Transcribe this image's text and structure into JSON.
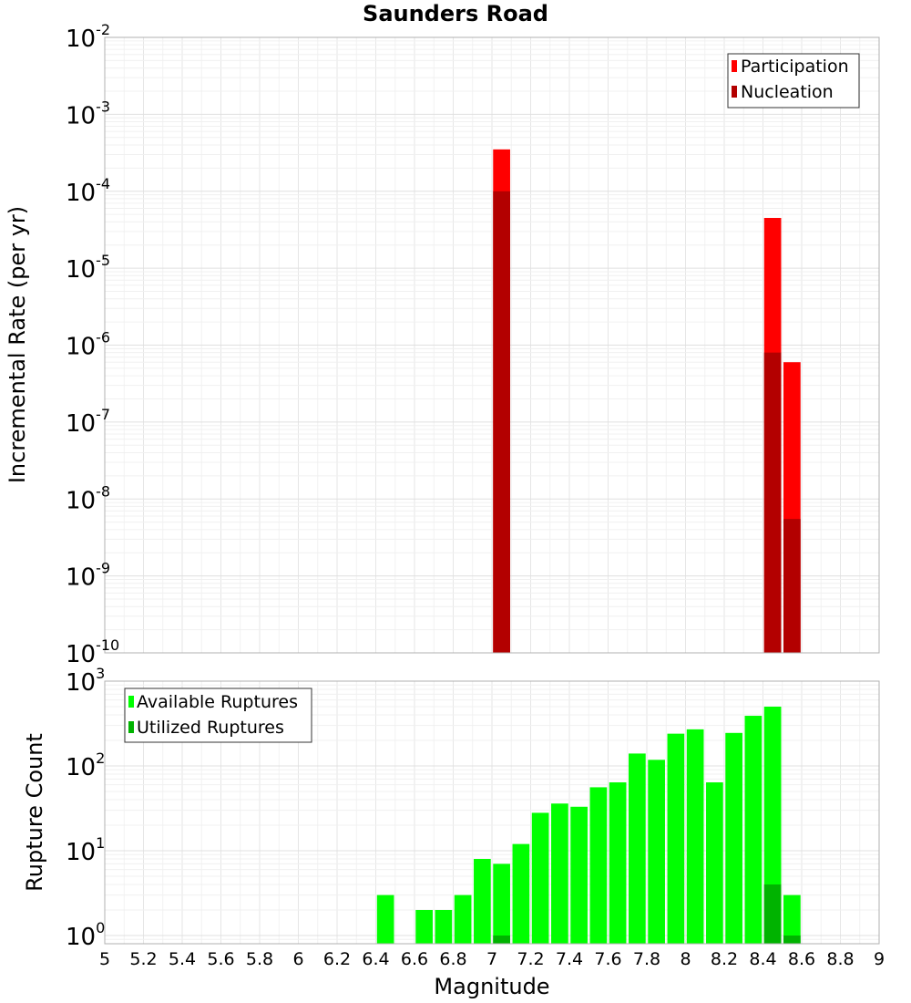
{
  "chart_data": [
    {
      "type": "bar",
      "title": "Saunders Road",
      "ylabel": "Incremental Rate (per yr)",
      "xlabel": "",
      "y_scale": "log",
      "ylim": [
        1e-10,
        0.01
      ],
      "xlim": [
        5,
        9
      ],
      "grid": true,
      "legend_position": "top-right",
      "series": [
        {
          "name": "Participation",
          "color": "#ff0000",
          "x": [
            7.05,
            8.45,
            8.55
          ],
          "values": [
            0.00035,
            4.5e-05,
            6e-07
          ]
        },
        {
          "name": "Nucleation",
          "color": "#b30000",
          "x": [
            7.05,
            8.45,
            8.55
          ],
          "values": [
            0.0001,
            8e-07,
            5.5e-09
          ]
        }
      ],
      "yticks": [
        {
          "base": "10",
          "exp": "-10",
          "value": 1e-10
        },
        {
          "base": "10",
          "exp": "-9",
          "value": 1e-09
        },
        {
          "base": "10",
          "exp": "-8",
          "value": 1e-08
        },
        {
          "base": "10",
          "exp": "-7",
          "value": 1e-07
        },
        {
          "base": "10",
          "exp": "-6",
          "value": 1e-06
        },
        {
          "base": "10",
          "exp": "-5",
          "value": 1e-05
        },
        {
          "base": "10",
          "exp": "-4",
          "value": 0.0001
        },
        {
          "base": "10",
          "exp": "-3",
          "value": 0.001
        },
        {
          "base": "10",
          "exp": "-2",
          "value": 0.01
        }
      ]
    },
    {
      "type": "bar",
      "title": "",
      "ylabel": "Rupture Count",
      "xlabel": "Magnitude",
      "y_scale": "log",
      "ylim": [
        0.8,
        1000
      ],
      "xlim": [
        5,
        9
      ],
      "grid": true,
      "legend_position": "top-left",
      "series": [
        {
          "name": "Available Ruptures",
          "color": "#00ff00",
          "x": [
            6.45,
            6.65,
            6.75,
            6.85,
            6.95,
            7.05,
            7.15,
            7.25,
            7.35,
            7.45,
            7.55,
            7.65,
            7.75,
            7.85,
            7.95,
            8.05,
            8.15,
            8.25,
            8.35,
            8.45,
            8.55
          ],
          "values": [
            3,
            2,
            2,
            3,
            8,
            7,
            12,
            28,
            36,
            33,
            56,
            64,
            140,
            118,
            240,
            270,
            64,
            245,
            390,
            500,
            3
          ]
        },
        {
          "name": "Utilized Ruptures",
          "color": "#00b300",
          "x": [
            7.05,
            8.45,
            8.55
          ],
          "values": [
            1,
            4,
            1
          ]
        }
      ],
      "yticks": [
        {
          "base": "10",
          "exp": "0",
          "value": 1
        },
        {
          "base": "10",
          "exp": "1",
          "value": 10
        },
        {
          "base": "10",
          "exp": "2",
          "value": 100
        },
        {
          "base": "10",
          "exp": "3",
          "value": 1000
        }
      ],
      "xticks": [
        "5",
        "5.2",
        "5.4",
        "5.6",
        "5.8",
        "6",
        "6.2",
        "6.4",
        "6.6",
        "6.8",
        "7",
        "7.2",
        "7.4",
        "7.6",
        "7.8",
        "8",
        "8.2",
        "8.4",
        "8.6",
        "8.8",
        "9"
      ]
    }
  ]
}
